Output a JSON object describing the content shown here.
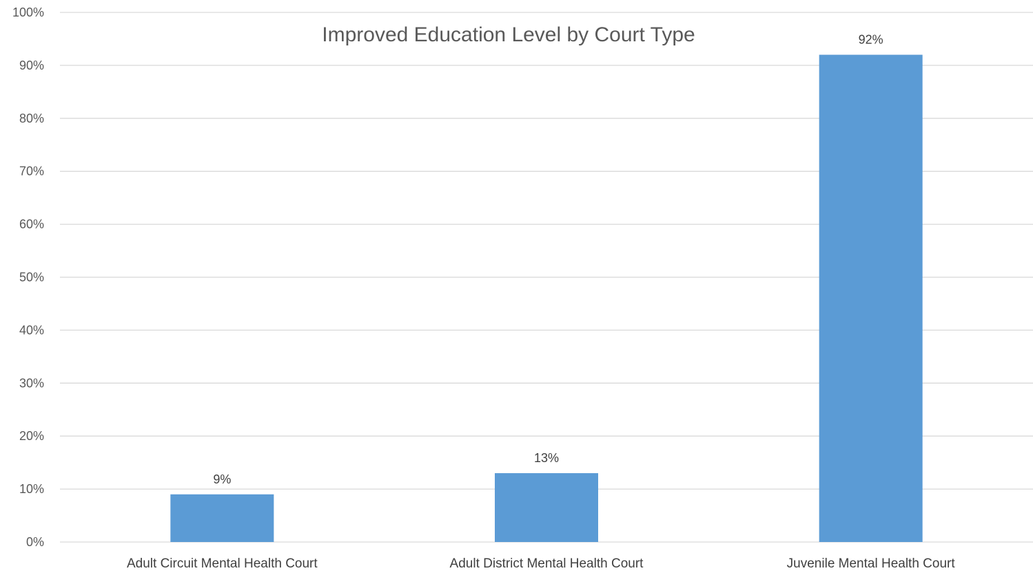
{
  "chart_data": {
    "type": "bar",
    "title": "Improved Education Level by Court Type",
    "categories": [
      "Adult Circuit Mental Health Court",
      "Adult District Mental Health Court",
      "Juvenile Mental Health Court"
    ],
    "values": [
      9,
      13,
      92
    ],
    "data_labels": [
      "9%",
      "13%",
      "92%"
    ],
    "ylim": [
      0,
      100
    ],
    "y_ticks": [
      0,
      10,
      20,
      30,
      40,
      50,
      60,
      70,
      80,
      90,
      100
    ],
    "y_tick_labels": [
      "0%",
      "10%",
      "20%",
      "30%",
      "40%",
      "50%",
      "60%",
      "70%",
      "80%",
      "90%",
      "100%"
    ],
    "grid": true,
    "bar_color": "#5B9BD5",
    "grid_color": "#D9D9D9"
  }
}
